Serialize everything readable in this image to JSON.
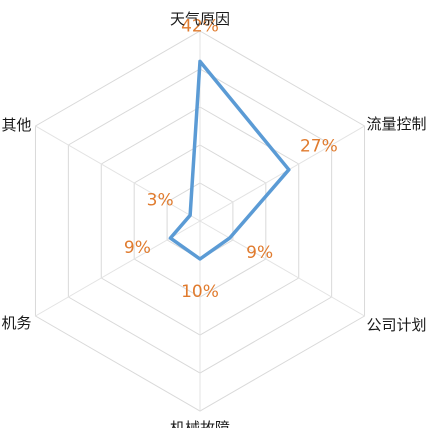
{
  "chart_data": {
    "type": "radar",
    "categories": [
      "天气原因",
      "流量控制",
      "公司计划",
      "机械故障",
      "机务",
      "其他"
    ],
    "series": [
      {
        "values": [
          42,
          27,
          9,
          10,
          9,
          3
        ],
        "labels": [
          "42%",
          "27%",
          "9%",
          "10%",
          "9%",
          "3%"
        ]
      }
    ],
    "rmax": 50,
    "rings": 5,
    "colors": {
      "series": "#5b9bd5",
      "data_label": "#e07b2e",
      "grid": "#d9d9d9",
      "axis_label": "#1a1a1a"
    }
  }
}
